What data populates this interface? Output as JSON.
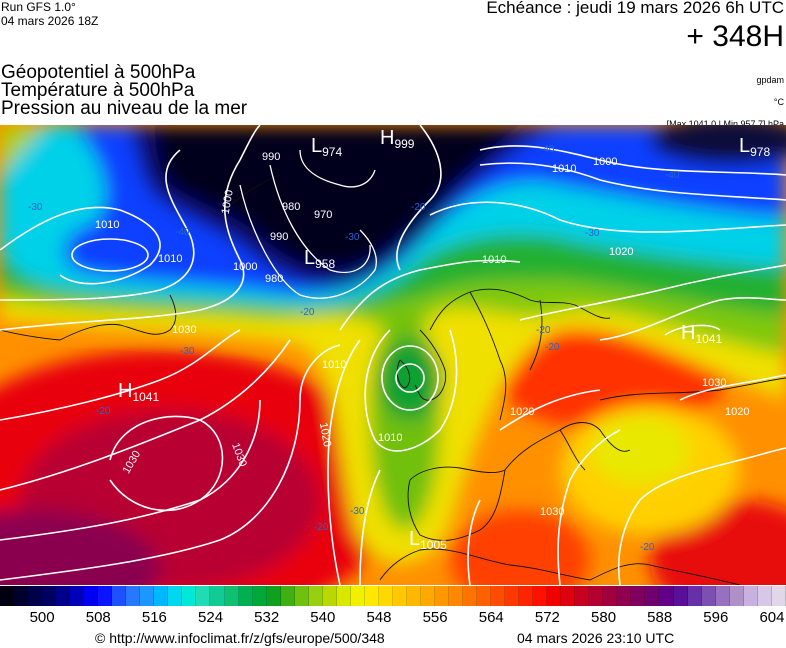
{
  "header": {
    "run": "Run GFS 1.0°",
    "run_date": "04 mars 2026 18Z",
    "titles": [
      "Géopotentiel à 500hPa",
      "Température à 500hPa",
      "Pression au niveau de la mer"
    ],
    "echeance": "Echéance : jeudi 19 mars 2026 6h UTC",
    "hour": "+ 348H",
    "units": [
      "gpdam",
      "°C",
      "[Max 1041.0 | Min 957.7] hPa"
    ]
  },
  "map": {
    "pressure_centers": [
      {
        "letter": "L",
        "value": "974"
      },
      {
        "letter": "H",
        "value": "999"
      },
      {
        "letter": "L",
        "value": "978"
      },
      {
        "letter": "L",
        "value": "958"
      },
      {
        "letter": "H",
        "value": "1041"
      },
      {
        "letter": "H",
        "value": "1041"
      },
      {
        "letter": "L",
        "value": "1005"
      }
    ],
    "isobar_labels": [
      "1010",
      "1010",
      "1000",
      "990",
      "990",
      "980",
      "970",
      "1000",
      "980",
      "1030",
      "1010",
      "1000",
      "1010",
      "1020",
      "1010",
      "1020",
      "1030",
      "1030",
      "1030",
      "1020",
      "1030",
      "1020",
      "1010"
    ],
    "temperature_labels": [
      "-30",
      "-40",
      "-30",
      "-30",
      "-20",
      "-20",
      "-40",
      "-40",
      "-20",
      "-30",
      "-20",
      "-20",
      "-30",
      "-20",
      "-20"
    ],
    "field_colors": {
      "black": "#05051a",
      "navy": "#0a0a70",
      "blue": "#1040ff",
      "cyan": "#00d0f0",
      "green": "#20b030",
      "dark_green": "#009a40",
      "yellow": "#f0e800",
      "orange": "#ff9000",
      "red": "#ff3000",
      "dark_red": "#d80020",
      "maroon": "#8a0050"
    }
  },
  "colorbar": {
    "min": 494,
    "max": 606,
    "ticks": [
      500,
      508,
      516,
      524,
      532,
      540,
      548,
      556,
      564,
      572,
      580,
      588,
      596,
      604
    ],
    "palette": [
      "#000010",
      "#00002a",
      "#000048",
      "#000060",
      "#00008a",
      "#0000b8",
      "#0000f0",
      "#0a14ff",
      "#1e50ff",
      "#2878ff",
      "#1e96ff",
      "#00b8ff",
      "#00d8f0",
      "#00e8d8",
      "#20dcb4",
      "#10cc94",
      "#10c070",
      "#00b050",
      "#00a83a",
      "#10a020",
      "#40b010",
      "#70c010",
      "#98d010",
      "#b8d800",
      "#d8e800",
      "#f0f000",
      "#ffe800",
      "#ffd800",
      "#ffc800",
      "#ffb800",
      "#ffa800",
      "#ff9800",
      "#ff8800",
      "#ff7400",
      "#ff6000",
      "#ff4c00",
      "#ff3800",
      "#ff2400",
      "#ff1000",
      "#f00000",
      "#dc0010",
      "#c80020",
      "#b40030",
      "#a00040",
      "#900050",
      "#800060",
      "#700070",
      "#600088",
      "#581098",
      "#6830a8",
      "#7c50b0",
      "#9870c0",
      "#b090c8",
      "#c8b0e0",
      "#d8c8e8",
      "#e0d8e8"
    ]
  },
  "footer": {
    "url": "© http://www.infoclimat.fr/z/gfs/europe/500/348",
    "generated": "04 mars 2026 23:10 UTC"
  }
}
